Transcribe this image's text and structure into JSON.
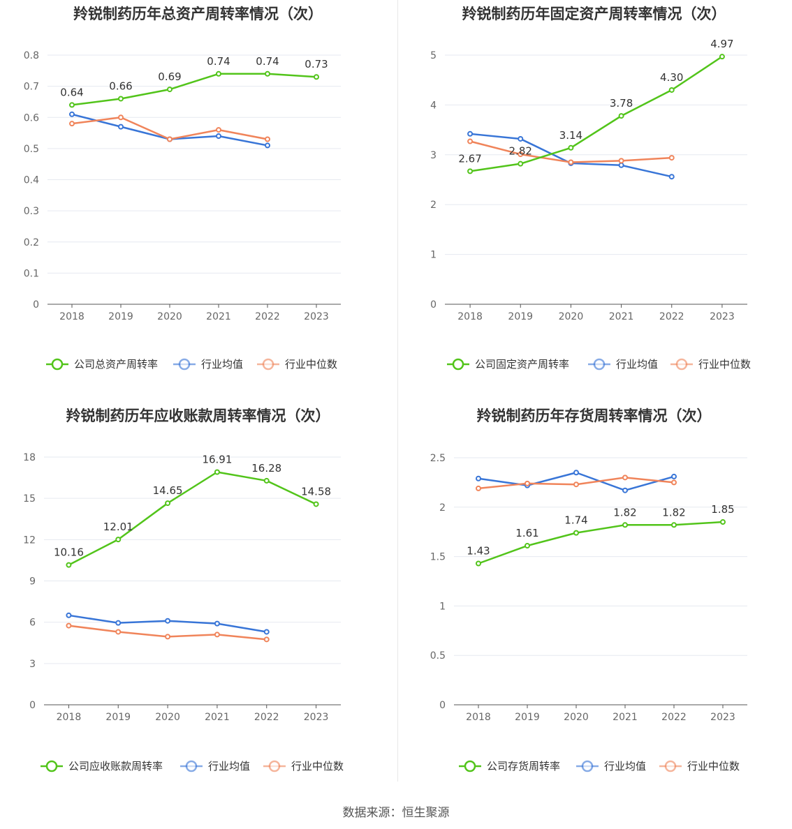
{
  "source": "数据来源：恒生聚源",
  "legend_labels": {
    "industry_avg": "行业均值",
    "industry_median": "行业中位数"
  },
  "colors": {
    "company": "#52c41a",
    "industry_avg": "#3875d7",
    "industry_median": "#f0845a",
    "grid": "#e6e9f0",
    "axis": "#555555"
  },
  "chart_data": [
    {
      "type": "line",
      "title": "羚锐制药历年总资产周转率情况（次）",
      "x": [
        "2018",
        "2019",
        "2020",
        "2021",
        "2022",
        "2023"
      ],
      "ylim": [
        0,
        0.8
      ],
      "yticks": [
        0,
        0.1,
        0.2,
        0.3,
        0.4,
        0.5,
        0.6,
        0.7,
        0.8
      ],
      "ytick_labels": [
        "0",
        "0.1",
        "0.2",
        "0.3",
        "0.4",
        "0.5",
        "0.6",
        "0.7",
        "0.8"
      ],
      "series": [
        {
          "name": "公司总资产周转率",
          "role": "company",
          "values": [
            0.64,
            0.66,
            0.69,
            0.74,
            0.74,
            0.73
          ],
          "labels": [
            "0.64",
            "0.66",
            "0.69",
            "0.74",
            "0.74",
            "0.73"
          ]
        },
        {
          "name": "行业均值",
          "role": "industry_avg",
          "values": [
            0.61,
            0.57,
            0.53,
            0.54,
            0.51,
            null
          ]
        },
        {
          "name": "行业中位数",
          "role": "industry_median",
          "values": [
            0.58,
            0.6,
            0.53,
            0.56,
            0.53,
            null
          ]
        }
      ],
      "grid": true,
      "legend": "bottom"
    },
    {
      "type": "line",
      "title": "羚锐制药历年固定资产周转率情况（次）",
      "x": [
        "2018",
        "2019",
        "2020",
        "2021",
        "2022",
        "2023"
      ],
      "ylim": [
        0,
        5
      ],
      "yticks": [
        0,
        1,
        2,
        3,
        4,
        5
      ],
      "ytick_labels": [
        "0",
        "1",
        "2",
        "3",
        "4",
        "5"
      ],
      "series": [
        {
          "name": "公司固定资产周转率",
          "role": "company",
          "values": [
            2.67,
            2.82,
            3.14,
            3.78,
            4.3,
            4.97
          ],
          "labels": [
            "2.67",
            "2.82",
            "3.14",
            "3.78",
            "4.30",
            "4.97"
          ]
        },
        {
          "name": "行业均值",
          "role": "industry_avg",
          "values": [
            3.42,
            3.32,
            2.83,
            2.79,
            2.56,
            null
          ]
        },
        {
          "name": "行业中位数",
          "role": "industry_median",
          "values": [
            3.27,
            3.01,
            2.85,
            2.88,
            2.94,
            null
          ]
        }
      ],
      "grid": true,
      "legend": "bottom"
    },
    {
      "type": "line",
      "title": "羚锐制药历年应收账款周转率情况（次）",
      "x": [
        "2018",
        "2019",
        "2020",
        "2021",
        "2022",
        "2023"
      ],
      "ylim": [
        0,
        18
      ],
      "yticks": [
        0,
        3,
        6,
        9,
        12,
        15,
        18
      ],
      "ytick_labels": [
        "0",
        "3",
        "6",
        "9",
        "12",
        "15",
        "18"
      ],
      "series": [
        {
          "name": "公司应收账款周转率",
          "role": "company",
          "values": [
            10.16,
            12.01,
            14.65,
            16.91,
            16.28,
            14.58
          ],
          "labels": [
            "10.16",
            "12.01",
            "14.65",
            "16.91",
            "16.28",
            "14.58"
          ]
        },
        {
          "name": "行业均值",
          "role": "industry_avg",
          "values": [
            6.5,
            5.95,
            6.1,
            5.9,
            5.3,
            null
          ]
        },
        {
          "name": "行业中位数",
          "role": "industry_median",
          "values": [
            5.75,
            5.3,
            4.95,
            5.1,
            4.75,
            null
          ]
        }
      ],
      "grid": true,
      "legend": "bottom"
    },
    {
      "type": "line",
      "title": "羚锐制药历年存货周转率情况（次）",
      "x": [
        "2018",
        "2019",
        "2020",
        "2021",
        "2022",
        "2023"
      ],
      "ylim": [
        0,
        2.5
      ],
      "yticks": [
        0,
        0.5,
        1,
        1.5,
        2,
        2.5
      ],
      "ytick_labels": [
        "0",
        "0.5",
        "1",
        "1.5",
        "2",
        "2.5"
      ],
      "series": [
        {
          "name": "公司存货周转率",
          "role": "company",
          "values": [
            1.43,
            1.61,
            1.74,
            1.82,
            1.82,
            1.85
          ],
          "labels": [
            "1.43",
            "1.61",
            "1.74",
            "1.82",
            "1.82",
            "1.85"
          ]
        },
        {
          "name": "行业均值",
          "role": "industry_avg",
          "values": [
            2.29,
            2.22,
            2.35,
            2.17,
            2.31,
            null
          ]
        },
        {
          "name": "行业中位数",
          "role": "industry_median",
          "values": [
            2.19,
            2.24,
            2.23,
            2.3,
            2.25,
            null
          ]
        }
      ],
      "grid": true,
      "legend": "bottom"
    }
  ]
}
